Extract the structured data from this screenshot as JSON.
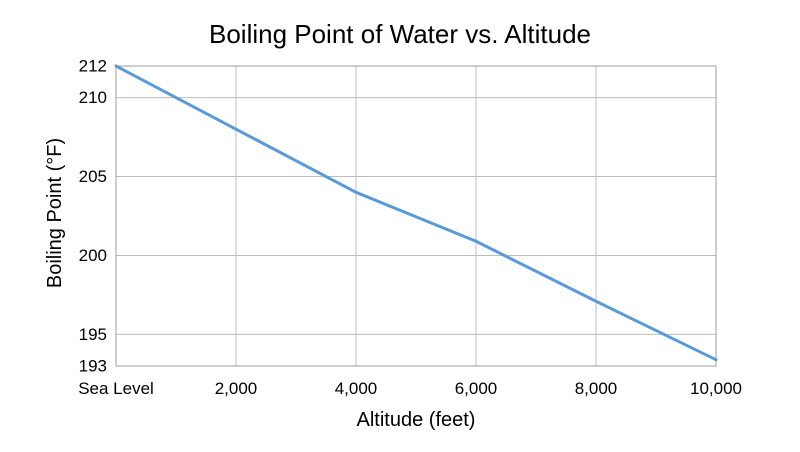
{
  "chart_data": {
    "type": "line",
    "title": "Boiling Point of Water vs. Altitude",
    "xlabel": "Altitude (feet)",
    "ylabel": "Boiling Point (°F)",
    "x": [
      0,
      2000,
      4000,
      6000,
      8000,
      10000
    ],
    "x_tick_values": [
      0,
      2000,
      4000,
      6000,
      8000,
      10000
    ],
    "x_tick_labels": [
      "Sea Level",
      "2,000",
      "4,000",
      "6,000",
      "8,000",
      "10,000"
    ],
    "y_tick_values": [
      193,
      195,
      200,
      205,
      210,
      212
    ],
    "y_tick_labels": [
      "193",
      "195",
      "200",
      "205",
      "210",
      "212"
    ],
    "xlim": [
      0,
      10000
    ],
    "ylim": [
      193,
      212
    ],
    "grid": true,
    "series": [
      {
        "values": [
          212,
          208,
          204,
          200.9,
          197.1,
          193.4
        ],
        "color": "#5b9bd5"
      }
    ]
  }
}
